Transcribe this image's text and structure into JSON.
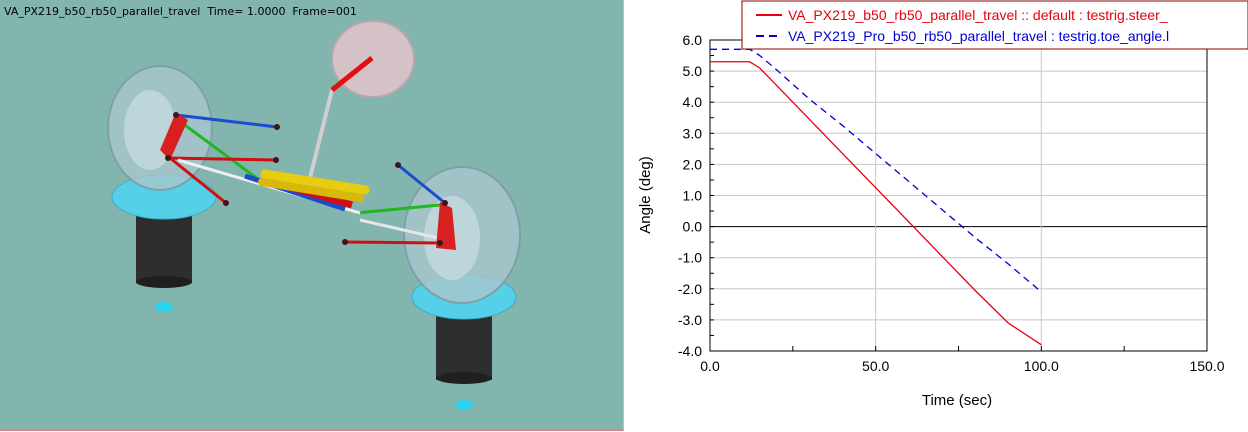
{
  "viewport": {
    "title": "VA_PX219_b50_rb50_parallel_travel  Time= 1.0000  Frame=001"
  },
  "chart_data": {
    "type": "line",
    "title": "",
    "xlabel": "Time (sec)",
    "ylabel": "Angle (deg)",
    "xlim": [
      0.0,
      150.0
    ],
    "ylim": [
      -4.0,
      6.0
    ],
    "xticks": [
      0.0,
      50.0,
      100.0,
      150.0
    ],
    "xtick_labels": [
      "0.0",
      "50.0",
      "100.0",
      "150.0"
    ],
    "yticks": [
      6.0,
      5.0,
      4.0,
      3.0,
      2.0,
      1.0,
      0.0,
      -1.0,
      -2.0,
      -3.0,
      -4.0
    ],
    "ytick_labels": [
      "6.0",
      "5.0",
      "4.0",
      "3.0",
      "2.0",
      "1.0",
      "0.0",
      "-1.0",
      "-2.0",
      "-3.0",
      "-4.0"
    ],
    "grid": true,
    "legend_position": "top",
    "series": [
      {
        "name": "VA_PX219_b50_rb50_parallel_travel :: default : testrig.steer_",
        "color": "#e8000c",
        "dash": "solid",
        "x": [
          0,
          12,
          15,
          20,
          30,
          40,
          50,
          60,
          70,
          80,
          90,
          100
        ],
        "y": [
          5.3,
          5.3,
          5.1,
          4.55,
          3.45,
          2.35,
          1.25,
          0.15,
          -0.95,
          -2.05,
          -3.1,
          -3.8
        ]
      },
      {
        "name": "VA_PX219_Pro_b50_rb50_parallel_travel : testrig.toe_angle.l",
        "color": "#0000d6",
        "dash": "dashed",
        "x": [
          0,
          12,
          15,
          20,
          30,
          40,
          50,
          60,
          70,
          80,
          90,
          100
        ],
        "y": [
          5.7,
          5.7,
          5.5,
          5.05,
          4.1,
          3.25,
          2.35,
          1.45,
          0.55,
          -0.35,
          -1.2,
          -2.1
        ]
      }
    ]
  }
}
